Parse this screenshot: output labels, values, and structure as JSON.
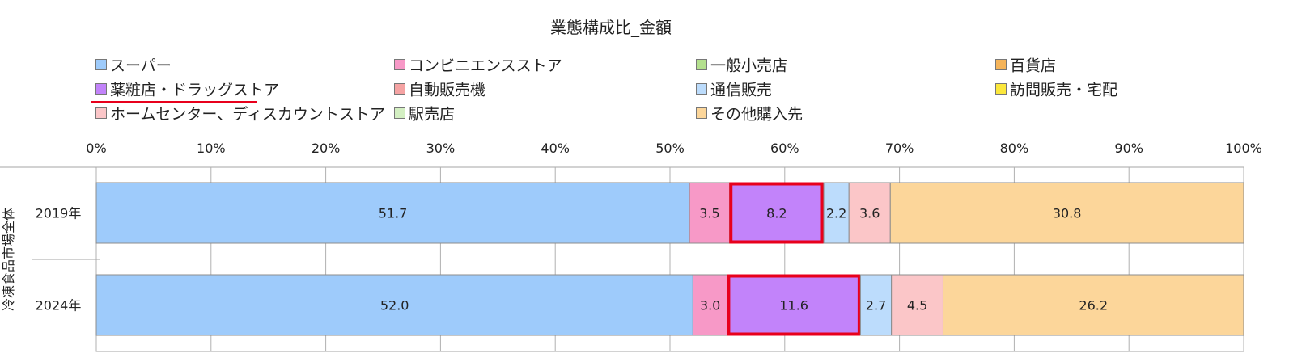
{
  "chart_data": {
    "type": "bar",
    "orientation": "horizontal",
    "stacked": true,
    "title": "業態構成比_金額",
    "y_group_label": "冷凍食品市場全体",
    "categories": [
      "2019年",
      "2024年"
    ],
    "xlim": [
      0,
      100
    ],
    "x_ticks": [
      "0%",
      "10%",
      "20%",
      "30%",
      "40%",
      "50%",
      "60%",
      "70%",
      "80%",
      "90%",
      "100%"
    ],
    "grid": true,
    "legend_position": "top",
    "series": [
      {
        "name": "スーパー",
        "color": "#9ecbfb",
        "values": [
          51.7,
          52.0
        ],
        "labels": [
          "51.7",
          "52.0"
        ]
      },
      {
        "name": "コンビニエンスストア",
        "color": "#f799c7",
        "values": [
          3.5,
          3.0
        ],
        "labels": [
          "3.5",
          "3.0"
        ]
      },
      {
        "name": "一般小売店",
        "color": "#b4e08e",
        "values": [
          0,
          0
        ],
        "labels": [
          "",
          ""
        ]
      },
      {
        "name": "百貨店",
        "color": "#f5b45a",
        "values": [
          0,
          0
        ],
        "labels": [
          "",
          ""
        ]
      },
      {
        "name": "薬粧店・ドラッグストア",
        "color": "#c283fa",
        "values": [
          8.2,
          11.6
        ],
        "labels": [
          "8.2",
          "11.6"
        ],
        "highlight": true
      },
      {
        "name": "自動販売機",
        "color": "#f5a3a3",
        "values": [
          0,
          0
        ],
        "labels": [
          "",
          ""
        ]
      },
      {
        "name": "通信販売",
        "color": "#bcdcfc",
        "values": [
          2.2,
          2.7
        ],
        "labels": [
          "2.2",
          "2.7"
        ]
      },
      {
        "name": "訪問販売・宅配",
        "color": "#fbe73c",
        "values": [
          0,
          0
        ],
        "labels": [
          "",
          ""
        ]
      },
      {
        "name": "ホームセンター、ディスカウントストア",
        "color": "#fbc6c8",
        "values": [
          3.6,
          4.5
        ],
        "labels": [
          "3.6",
          "4.5"
        ]
      },
      {
        "name": "駅売店",
        "color": "#d3efc2",
        "values": [
          0,
          0
        ],
        "labels": [
          "",
          ""
        ]
      },
      {
        "name": "その他購入先",
        "color": "#fcd69a",
        "values": [
          30.8,
          26.2
        ],
        "labels": [
          "30.8",
          "26.2"
        ]
      }
    ],
    "highlight_color": "#e8001c"
  }
}
